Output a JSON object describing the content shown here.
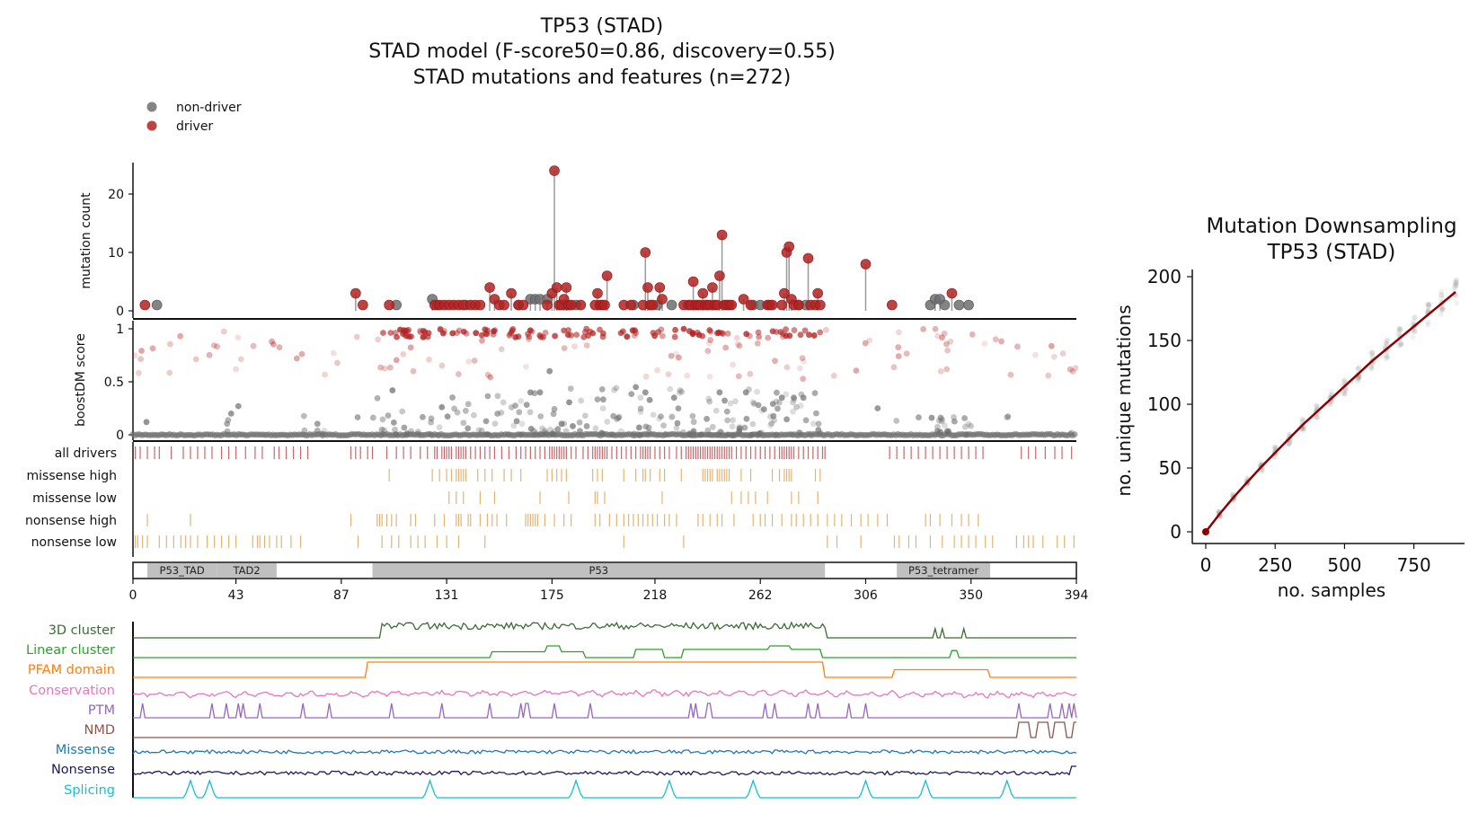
{
  "titles": {
    "line1": "TP53 (STAD)",
    "line2": "STAD model (F-score50=0.86, discovery=0.55)",
    "line3": "STAD mutations and features (n=272)"
  },
  "legend": {
    "placement": "top-left",
    "items": [
      {
        "label": "non-driver",
        "color": "#6e6e6e"
      },
      {
        "label": "driver",
        "color": "#b22222"
      }
    ]
  },
  "colors": {
    "driver": "#b22222",
    "non_driver": "#6e6e6e",
    "driver_score": "#c98080",
    "consequence_ticks": "#e3b473",
    "driver_ticks": "#c5686e",
    "domain_fill": "#c0c0c0",
    "downsampling_mean": "#8b0000"
  },
  "chart_data": [
    {
      "type": "scatter",
      "subtype": "lollipop",
      "ylabel": "mutation count",
      "yticks": [
        0,
        10,
        20
      ],
      "ylim": [
        0,
        25
      ],
      "xlim": [
        0,
        394
      ],
      "drivers": [
        [
          5,
          1
        ],
        [
          93,
          3
        ],
        [
          96,
          1
        ],
        [
          107,
          1
        ],
        [
          126,
          1
        ],
        [
          128,
          1
        ],
        [
          130,
          1
        ],
        [
          132,
          1
        ],
        [
          134,
          1
        ],
        [
          136,
          1
        ],
        [
          138,
          1
        ],
        [
          141,
          1
        ],
        [
          143,
          1
        ],
        [
          145,
          1
        ],
        [
          149,
          4
        ],
        [
          151,
          2
        ],
        [
          153,
          1
        ],
        [
          155,
          1
        ],
        [
          158,
          3
        ],
        [
          161,
          1
        ],
        [
          163,
          1
        ],
        [
          173,
          1
        ],
        [
          175,
          3
        ],
        [
          176,
          24
        ],
        [
          177,
          4
        ],
        [
          178,
          1
        ],
        [
          179,
          1
        ],
        [
          180,
          2
        ],
        [
          181,
          4
        ],
        [
          182,
          1
        ],
        [
          183,
          1
        ],
        [
          187,
          1
        ],
        [
          193,
          1
        ],
        [
          194,
          3
        ],
        [
          195,
          1
        ],
        [
          196,
          1
        ],
        [
          197,
          1
        ],
        [
          198,
          6
        ],
        [
          205,
          1
        ],
        [
          208,
          1
        ],
        [
          213,
          1
        ],
        [
          214,
          10
        ],
        [
          215,
          4
        ],
        [
          216,
          1
        ],
        [
          217,
          1
        ],
        [
          220,
          4
        ],
        [
          221,
          2
        ],
        [
          230,
          1
        ],
        [
          232,
          1
        ],
        [
          233,
          1
        ],
        [
          234,
          5
        ],
        [
          235,
          1
        ],
        [
          236,
          1
        ],
        [
          237,
          1
        ],
        [
          238,
          3
        ],
        [
          239,
          1
        ],
        [
          240,
          1
        ],
        [
          241,
          1
        ],
        [
          242,
          4
        ],
        [
          243,
          1
        ],
        [
          244,
          1
        ],
        [
          245,
          6
        ],
        [
          246,
          13
        ],
        [
          247,
          1
        ],
        [
          248,
          1
        ],
        [
          249,
          1
        ],
        [
          250,
          1
        ],
        [
          255,
          2
        ],
        [
          258,
          1
        ],
        [
          265,
          1
        ],
        [
          266,
          1
        ],
        [
          267,
          1
        ],
        [
          271,
          1
        ],
        [
          272,
          3
        ],
        [
          273,
          10
        ],
        [
          274,
          11
        ],
        [
          275,
          2
        ],
        [
          276,
          1
        ],
        [
          278,
          1
        ],
        [
          282,
          9
        ],
        [
          283,
          1
        ],
        [
          285,
          1
        ],
        [
          286,
          3
        ],
        [
          287,
          1
        ],
        [
          306,
          8
        ],
        [
          317,
          1
        ],
        [
          342,
          3
        ]
      ],
      "non_drivers": [
        [
          10,
          1
        ],
        [
          110,
          1
        ],
        [
          125,
          2
        ],
        [
          127,
          1
        ],
        [
          139,
          1
        ],
        [
          161,
          1
        ],
        [
          166,
          2
        ],
        [
          168,
          2
        ],
        [
          170,
          2
        ],
        [
          173,
          2
        ],
        [
          181,
          1
        ],
        [
          185,
          1
        ],
        [
          209,
          1
        ],
        [
          219,
          1
        ],
        [
          225,
          1
        ],
        [
          259,
          1
        ],
        [
          262,
          1
        ],
        [
          278,
          1
        ],
        [
          281,
          1
        ],
        [
          333,
          1
        ],
        [
          335,
          2
        ],
        [
          337,
          2
        ],
        [
          339,
          1
        ],
        [
          345,
          1
        ],
        [
          349,
          1
        ]
      ]
    },
    {
      "type": "scatter",
      "ylabel": "boostDM score",
      "yticks": [
        0,
        0.5,
        1
      ],
      "ylim": [
        0,
        1
      ],
      "xlim": [
        0,
        394
      ]
    },
    {
      "type": "table",
      "rows": [
        "all drivers",
        "missense high",
        "missense low",
        "nonsense high",
        "nonsense low"
      ],
      "tracks": {
        "all drivers": [
          1,
          3,
          6,
          9,
          11,
          16,
          21,
          24,
          27,
          30,
          33,
          37,
          40,
          43,
          47,
          51,
          54,
          59,
          61,
          64,
          67,
          70,
          73,
          91,
          93,
          95,
          98,
          100,
          106,
          110,
          113,
          116,
          120,
          123,
          126,
          127,
          129,
          130,
          131,
          132,
          133,
          135,
          136,
          137,
          138,
          139,
          141,
          143,
          145,
          147,
          149,
          151,
          154,
          157,
          160,
          162,
          164,
          166,
          168,
          170,
          172,
          174,
          175,
          176,
          177,
          178,
          179,
          180,
          181,
          183,
          185,
          188,
          190,
          192,
          193,
          194,
          195,
          196,
          197,
          198,
          200,
          202,
          204,
          206,
          208,
          210,
          212,
          213,
          214,
          215,
          216,
          218,
          220,
          222,
          224,
          227,
          229,
          231,
          232,
          233,
          234,
          235,
          236,
          237,
          238,
          239,
          240,
          241,
          242,
          243,
          244,
          245,
          246,
          247,
          248,
          249,
          250,
          252,
          254,
          256,
          258,
          260,
          262,
          264,
          266,
          268,
          270,
          271,
          272,
          273,
          274,
          275,
          276,
          278,
          280,
          282,
          284,
          286,
          288,
          289,
          316,
          319,
          322,
          325,
          328,
          331,
          334,
          337,
          340,
          343,
          346,
          349,
          352,
          355,
          371,
          374,
          377,
          381,
          385,
          388,
          392
        ],
        "missense high": [
          107,
          125,
          128,
          131,
          133,
          135,
          136,
          137,
          138,
          139,
          144,
          147,
          150,
          155,
          158,
          162,
          173,
          175,
          177,
          179,
          181,
          192,
          194,
          196,
          205,
          210,
          213,
          214,
          216,
          220,
          222,
          229,
          238,
          239,
          240,
          241,
          242,
          244,
          245,
          246,
          247,
          248,
          249,
          254,
          258,
          267,
          270,
          272,
          273,
          274,
          275,
          285,
          287
        ],
        "missense low": [
          132,
          135,
          138,
          145,
          151,
          170,
          182,
          193,
          194,
          197,
          221,
          250,
          254,
          257,
          260,
          265,
          275,
          278,
          286
        ],
        "nonsense high": [
          6,
          24,
          91,
          102,
          103,
          104,
          106,
          108,
          110,
          116,
          118,
          126,
          130,
          135,
          136,
          137,
          140,
          141,
          145,
          148,
          150,
          152,
          156,
          164,
          165,
          166,
          167,
          168,
          169,
          172,
          176,
          180,
          183,
          193,
          195,
          199,
          202,
          205,
          207,
          209,
          211,
          213,
          215,
          217,
          219,
          222,
          224,
          227,
          236,
          238,
          241,
          244,
          246,
          251,
          259,
          262,
          264,
          267,
          271,
          275,
          277,
          280,
          283,
          286,
          290,
          293,
          296,
          300,
          304,
          307,
          311,
          315,
          331,
          333,
          337,
          342,
          346,
          349,
          353
        ],
        "nonsense low": [
          1,
          2,
          4,
          6,
          11,
          14,
          17,
          20,
          22,
          24,
          27,
          31,
          34,
          37,
          40,
          43,
          50,
          52,
          53,
          55,
          57,
          60,
          62,
          66,
          70,
          94,
          104,
          108,
          111,
          116,
          119,
          122,
          127,
          131,
          136,
          147,
          205,
          230,
          290,
          294,
          304,
          318,
          320,
          324,
          327,
          333,
          338,
          343,
          346,
          349,
          352,
          356,
          359,
          369,
          372,
          374,
          376,
          380,
          386,
          389,
          393
        ]
      }
    },
    {
      "type": "bar",
      "subtype": "domain-track",
      "xlim": [
        0,
        394
      ],
      "xticks": [
        0,
        43,
        87,
        131,
        175,
        218,
        262,
        306,
        350,
        394
      ],
      "domains": [
        {
          "name": "P53_TAD",
          "start": 6,
          "end": 35
        },
        {
          "name": "TAD2",
          "start": 35,
          "end": 60
        },
        {
          "name": "P53",
          "start": 100,
          "end": 289
        },
        {
          "name": "P53_tetramer",
          "start": 319,
          "end": 358
        }
      ]
    },
    {
      "type": "line",
      "subtype": "feature-tracks",
      "xlim": [
        0,
        394
      ],
      "tracks": [
        {
          "name": "3D cluster",
          "color": "#3a6b35"
        },
        {
          "name": "Linear cluster",
          "color": "#2ca02c"
        },
        {
          "name": "PFAM domain",
          "color": "#ff7f0e"
        },
        {
          "name": "Conservation",
          "color": "#e377c2"
        },
        {
          "name": "PTM",
          "color": "#9467bd"
        },
        {
          "name": "NMD",
          "color": "#8c564b"
        },
        {
          "name": "Missense",
          "color": "#1f77b4"
        },
        {
          "name": "Nonsense",
          "color": "#1a1a5e"
        },
        {
          "name": "Splicing",
          "color": "#17becf"
        }
      ]
    },
    {
      "type": "line",
      "title": "Mutation Downsampling\nTP53 (STAD)",
      "title_line1": "Mutation Downsampling",
      "title_line2": "TP53 (STAD)",
      "xlabel": "no. samples",
      "ylabel": "no. unique mutations",
      "xticks": [
        0,
        250,
        500,
        750
      ],
      "yticks": [
        0,
        50,
        100,
        150,
        200
      ],
      "xlim": [
        -50,
        950
      ],
      "ylim": [
        -10,
        202
      ],
      "mean_curve": {
        "x": [
          0,
          50,
          100,
          150,
          200,
          250,
          300,
          350,
          400,
          450,
          500,
          550,
          600,
          650,
          700,
          750,
          800,
          850,
          900
        ],
        "y": [
          0,
          14,
          27,
          39,
          51,
          62,
          73,
          84,
          94,
          104,
          114,
          124,
          134,
          143,
          152,
          161,
          170,
          179,
          188
        ]
      }
    }
  ]
}
